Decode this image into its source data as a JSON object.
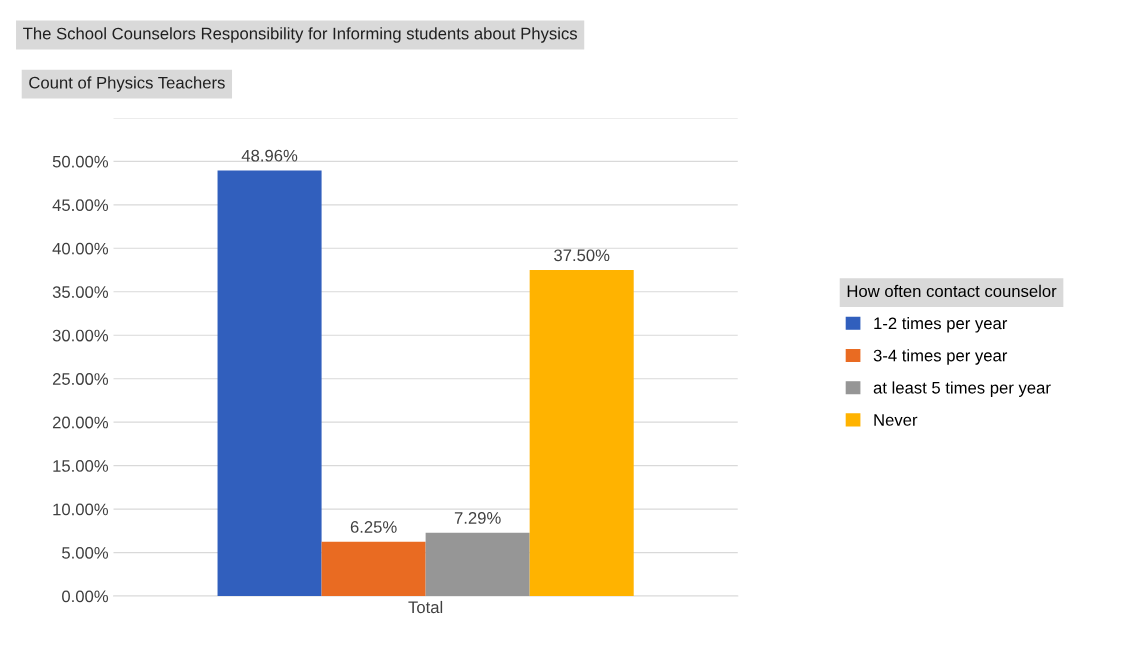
{
  "chart_data": {
    "type": "bar",
    "title": "The School Counselors Responsibility for Informing students about Physics",
    "subtitle": "Count of Physics Teachers",
    "legend_title": "How often contact counselor",
    "categories": [
      "Total"
    ],
    "series": [
      {
        "name": "1-2 times per year",
        "color": "#315fbd",
        "values": [
          48.96
        ]
      },
      {
        "name": "3-4 times per year",
        "color": "#e96b22",
        "values": [
          6.25
        ]
      },
      {
        "name": "at least 5 times per year",
        "color": "#969696",
        "values": [
          7.29
        ]
      },
      {
        "name": "Never",
        "color": "#ffb300",
        "values": [
          37.5
        ]
      }
    ],
    "value_labels": [
      "48.96%",
      "6.25%",
      "7.29%",
      "37.50%"
    ],
    "ylim": [
      0,
      55
    ],
    "yticks": [
      {
        "value": 0,
        "label": "0.00%"
      },
      {
        "value": 5,
        "label": "5.00%"
      },
      {
        "value": 10,
        "label": "10.00%"
      },
      {
        "value": 15,
        "label": "15.00%"
      },
      {
        "value": 20,
        "label": "20.00%"
      },
      {
        "value": 25,
        "label": "25.00%"
      },
      {
        "value": 30,
        "label": "30.00%"
      },
      {
        "value": 35,
        "label": "35.00%"
      },
      {
        "value": 40,
        "label": "40.00%"
      },
      {
        "value": 45,
        "label": "45.00%"
      },
      {
        "value": 50,
        "label": "50.00%"
      },
      {
        "value": 55,
        "label": null
      }
    ],
    "grid": "y",
    "legend": "right"
  }
}
